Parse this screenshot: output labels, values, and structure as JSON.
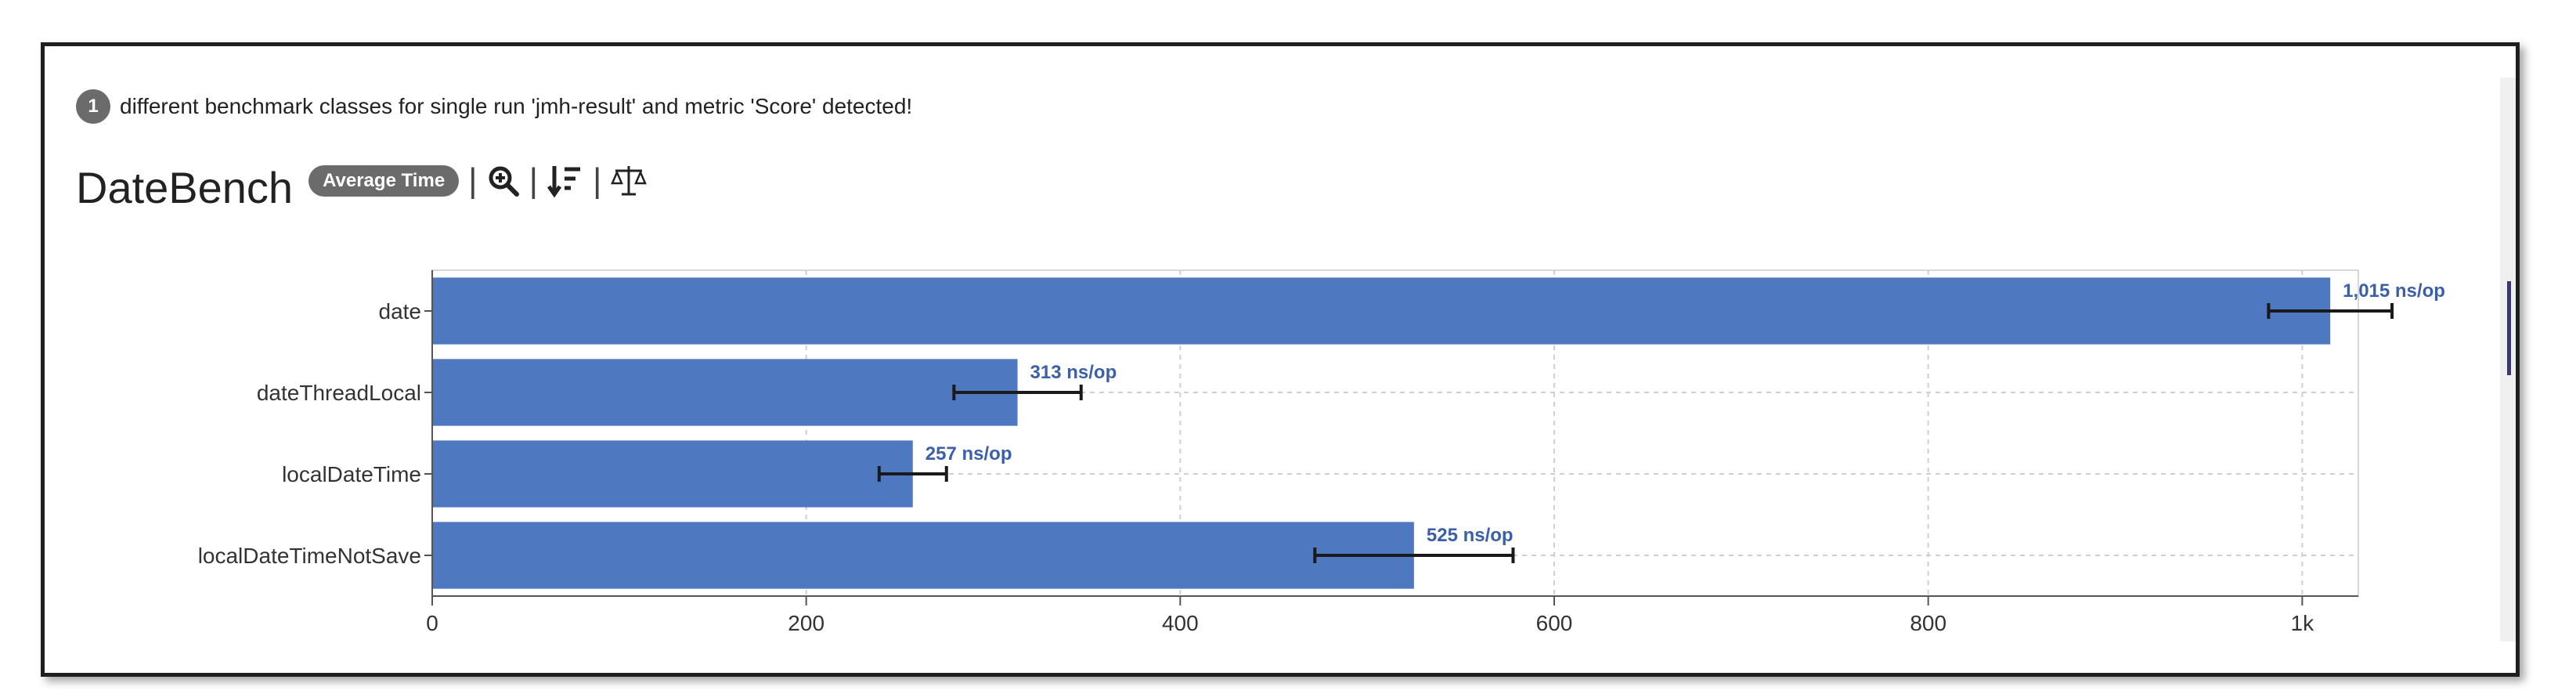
{
  "notice": {
    "count": "1",
    "text": "different benchmark classes for single run 'jmh-result' and metric 'Score' detected!"
  },
  "header": {
    "title": "DateBench",
    "mode_badge": "Average Time"
  },
  "toolbar": {
    "icons": [
      "zoom-in-icon",
      "sort-icon",
      "compare-icon"
    ]
  },
  "colors": {
    "bar": "#4e79c1",
    "label": "#3b5fa8",
    "badge": "#6b6b6b"
  },
  "chart_data": {
    "type": "bar",
    "orientation": "horizontal",
    "categories": [
      "date",
      "dateThreadLocal",
      "localDateTime",
      "localDateTimeNotSave"
    ],
    "series": [
      {
        "name": "avgt ns/op",
        "values": [
          1015,
          313,
          257,
          525
        ],
        "errors": [
          33,
          34,
          18,
          53
        ],
        "labels": [
          "1,015 ns/op",
          "313 ns/op",
          "257 ns/op",
          "525 ns/op"
        ]
      }
    ],
    "xlim": [
      0,
      1030
    ],
    "xticks": [
      0,
      200,
      400,
      600,
      800,
      1000
    ],
    "xtick_labels": [
      "0",
      "200",
      "400",
      "600",
      "800",
      "1k"
    ],
    "grid": true,
    "legend": "bottom"
  }
}
